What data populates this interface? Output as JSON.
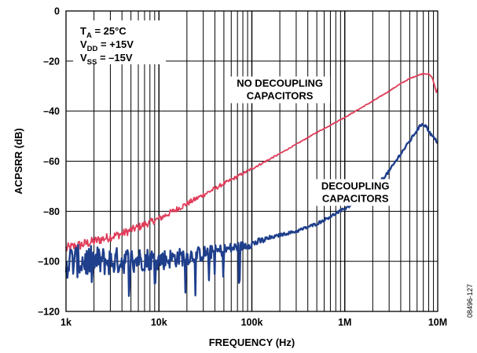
{
  "chart_data": {
    "type": "line",
    "xscale": "log",
    "xlim": [
      1000,
      10000000
    ],
    "ylim": [
      -120,
      0
    ],
    "grid": true,
    "xlabel": "FREQUENCY (Hz)",
    "ylabel": "ACPSRR (dB)",
    "x_tick_labels": [
      {
        "value": 1000,
        "label": "1k"
      },
      {
        "value": 10000,
        "label": "10k"
      },
      {
        "value": 100000,
        "label": "100k"
      },
      {
        "value": 1000000,
        "label": "1M"
      },
      {
        "value": 10000000,
        "label": "10M"
      }
    ],
    "y_tick_labels": [
      {
        "value": 0,
        "label": "0"
      },
      {
        "value": -20,
        "label": "–20"
      },
      {
        "value": -40,
        "label": "–40"
      },
      {
        "value": -60,
        "label": "–60"
      },
      {
        "value": -80,
        "label": "–80"
      },
      {
        "value": -100,
        "label": "–100"
      },
      {
        "value": -120,
        "label": "–120"
      }
    ],
    "conditions": [
      {
        "main": "T",
        "sub": "A",
        "rest": " = 25°C"
      },
      {
        "main": "V",
        "sub": "DD",
        "rest": " = +15V"
      },
      {
        "main": "V",
        "sub": "SS",
        "rest": " = –15V"
      }
    ],
    "annotations": [
      {
        "lines": [
          "NO DECOUPLING",
          "CAPACITORS"
        ],
        "x": 200000,
        "y": -31.5
      },
      {
        "lines": [
          "DECOUPLING",
          "CAPACITORS"
        ],
        "x": 1300000,
        "y": -72.5
      }
    ],
    "figure_id": "08496-127",
    "series": [
      {
        "color": "#e03c5a",
        "noise": 2.2,
        "points": [
          [
            1000,
            -95
          ],
          [
            1600,
            -93
          ],
          [
            2500,
            -91
          ],
          [
            4000,
            -89
          ],
          [
            6300,
            -86
          ],
          [
            10000,
            -83
          ],
          [
            20000,
            -77
          ],
          [
            50000,
            -69
          ],
          [
            100000,
            -63
          ],
          [
            200000,
            -57
          ],
          [
            500000,
            -48.5
          ],
          [
            1000000,
            -42.5
          ],
          [
            2000000,
            -36
          ],
          [
            3000000,
            -32
          ],
          [
            4000000,
            -29
          ],
          [
            5000000,
            -27
          ],
          [
            6000000,
            -25.8
          ],
          [
            7000000,
            -25
          ],
          [
            8000000,
            -25.2
          ],
          [
            8700000,
            -26.5
          ],
          [
            9300000,
            -30
          ],
          [
            9700000,
            -33
          ],
          [
            10000000,
            -31
          ]
        ]
      },
      {
        "color": "#1f3f8c",
        "noise": 7,
        "points": [
          [
            1000,
            -100
          ],
          [
            3000,
            -100
          ],
          [
            8000,
            -99
          ],
          [
            10000,
            -99.5
          ],
          [
            20000,
            -98
          ],
          [
            50000,
            -95.5
          ],
          [
            100000,
            -93
          ],
          [
            200000,
            -89.5
          ],
          [
            300000,
            -88
          ],
          [
            500000,
            -85
          ],
          [
            1000000,
            -79
          ],
          [
            1500000,
            -75
          ],
          [
            2000000,
            -71.5
          ],
          [
            3000000,
            -64
          ],
          [
            4000000,
            -57
          ],
          [
            5000000,
            -52
          ],
          [
            6000000,
            -47.5
          ],
          [
            6800000,
            -45
          ],
          [
            7500000,
            -46
          ],
          [
            8500000,
            -49.5
          ],
          [
            10000000,
            -52.5
          ]
        ]
      }
    ]
  }
}
